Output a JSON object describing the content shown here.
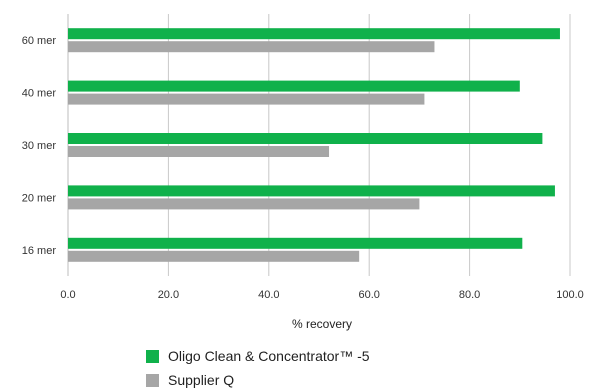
{
  "chart_data": {
    "type": "bar",
    "orientation": "horizontal",
    "categories": [
      "60 mer",
      "40 mer",
      "30 mer",
      "20 mer",
      "16 mer"
    ],
    "series": [
      {
        "name": "Oligo Clean & Concentrator™ -5",
        "values": [
          98,
          90,
          94.5,
          97,
          90.5
        ],
        "color": "#10b14b"
      },
      {
        "name": "Supplier Q",
        "values": [
          73,
          71,
          52,
          70,
          58
        ],
        "color": "#a6a6a6"
      }
    ],
    "xlabel": "% recovery",
    "ylabel": "",
    "xlim": [
      0,
      100
    ],
    "xticks": [
      "0.0",
      "20.0",
      "40.0",
      "60.0",
      "80.0",
      "100.0"
    ],
    "grid": true,
    "legend_position": "bottom",
    "gridline_color": "#c8c8c8",
    "axis_color": "#bdbdbd"
  }
}
